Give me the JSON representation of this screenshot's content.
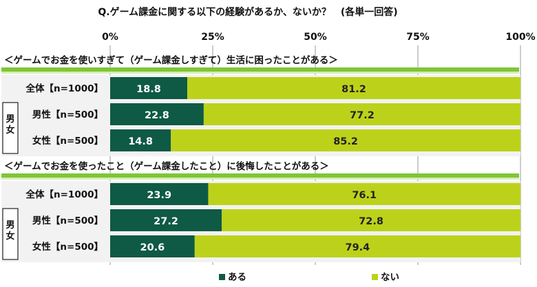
{
  "title": "Q.ゲーム課金に関する以下の経験があるか、ないか？　(各単一回答)",
  "axis_ticks": [
    "0%",
    "25%",
    "50%",
    "75%",
    "100%"
  ],
  "colors": {
    "aru": "#0e5a44",
    "nai": "#bcd21a",
    "header_green": "#7ec636",
    "row_bg": "#f2f2f2"
  },
  "legend": [
    {
      "label": "ある",
      "color": "#0e5a44"
    },
    {
      "label": "ない",
      "color": "#bcd21a"
    }
  ],
  "group_label": "男女",
  "chart_data": {
    "type": "bar",
    "orientation": "horizontal",
    "stacked": true,
    "xlim": [
      0,
      100
    ],
    "title": "Q.ゲーム課金に関する以下の経験があるか、ないか？　(各単一回答)",
    "legend_position": "bottom",
    "panels": [
      {
        "heading": "＜ゲームでお金を使いすぎて（ゲーム課金しすぎて）生活に困ったことがある＞",
        "categories": [
          "全体【n=1000】",
          "男性【n=500】",
          "女性【n=500】"
        ],
        "series": [
          {
            "name": "ある",
            "values": [
              18.8,
              22.8,
              14.8
            ]
          },
          {
            "name": "ない",
            "values": [
              81.2,
              77.2,
              85.2
            ]
          }
        ]
      },
      {
        "heading": "＜ゲームでお金を使ったこと（ゲーム課金したこと）に後悔したことがある＞",
        "categories": [
          "全体【n=1000】",
          "男性【n=500】",
          "女性【n=500】"
        ],
        "series": [
          {
            "name": "ある",
            "values": [
              23.9,
              27.2,
              20.6
            ]
          },
          {
            "name": "ない",
            "values": [
              76.1,
              72.8,
              79.4
            ]
          }
        ]
      }
    ]
  }
}
